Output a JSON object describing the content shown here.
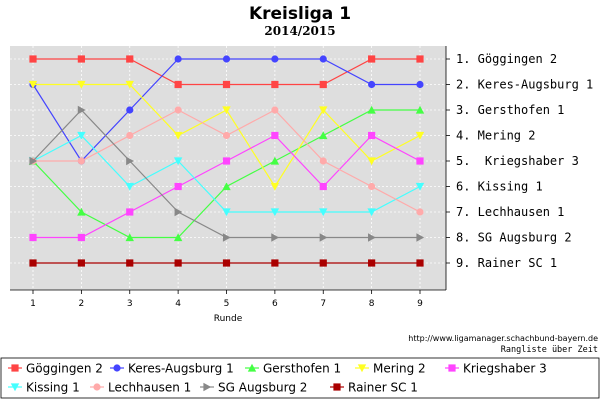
{
  "chart_data": {
    "type": "line",
    "title": "Kreisliga 1",
    "subtitle": "2014/2015",
    "xlabel": "Runde",
    "ylabel": "",
    "x": [
      1,
      2,
      3,
      4,
      5,
      6,
      7,
      8,
      9
    ],
    "y_range": [
      1,
      9
    ],
    "y_inverted": true,
    "grid": true,
    "right_labels": [
      "1. Göggingen 2",
      "2. Keres-Augsburg 1",
      "3. Gersthofen 1",
      "4. Mering 2",
      "5.  Kriegshaber 3",
      "6. Kissing 1",
      "7. Lechhausen 1",
      "8. SG Augsburg 2",
      "9. Rainer SC 1"
    ],
    "source_url": "http://www.ligamanager.schachbund-bayern.de",
    "caption": "Rangliste über Zeit",
    "legend_position": "bottom",
    "series": [
      {
        "name": "Göggingen 2",
        "color": "#ff4444",
        "marker": "square",
        "values": [
          1,
          1,
          1,
          2,
          2,
          2,
          2,
          1,
          1
        ]
      },
      {
        "name": "Keres-Augsburg 1",
        "color": "#4444ff",
        "marker": "circle",
        "values": [
          2,
          5,
          3,
          1,
          1,
          1,
          1,
          2,
          2
        ]
      },
      {
        "name": "Gersthofen 1",
        "color": "#44ff44",
        "marker": "triangle-up",
        "values": [
          5,
          7,
          8,
          8,
          6,
          5,
          4,
          3,
          3
        ]
      },
      {
        "name": "Mering 2",
        "color": "#ffff22",
        "marker": "triangle-down",
        "values": [
          2,
          2,
          2,
          4,
          3,
          6,
          3,
          5,
          4
        ]
      },
      {
        "name": "Kriegshaber 3",
        "color": "#ff44ff",
        "marker": "square",
        "values": [
          8,
          8,
          7,
          6,
          5,
          4,
          6,
          4,
          5
        ]
      },
      {
        "name": "Kissing 1",
        "color": "#44ffff",
        "marker": "triangle-down",
        "values": [
          5,
          4,
          6,
          5,
          7,
          7,
          7,
          7,
          6
        ]
      },
      {
        "name": "Lechhausen 1",
        "color": "#ffaaaa",
        "marker": "circle",
        "values": [
          5,
          5,
          4,
          3,
          4,
          3,
          5,
          6,
          7
        ]
      },
      {
        "name": "SG Augsburg 2",
        "color": "#888888",
        "marker": "triangle-right",
        "values": [
          5,
          3,
          5,
          7,
          8,
          8,
          8,
          8,
          8
        ]
      },
      {
        "name": "Rainer SC 1",
        "color": "#aa0000",
        "marker": "square",
        "values": [
          9,
          9,
          9,
          9,
          9,
          9,
          9,
          9,
          9
        ]
      }
    ]
  }
}
